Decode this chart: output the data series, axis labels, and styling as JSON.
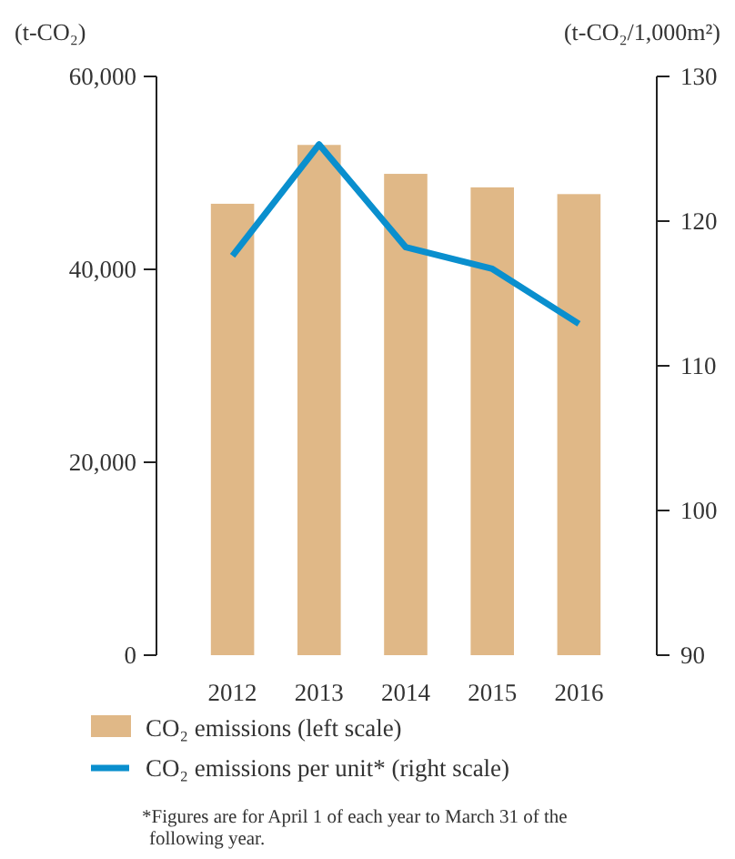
{
  "chart_data": {
    "type": "bar",
    "ylabel": "(t-CO₂)",
    "y2label": "(t-CO₂/1,000m²)",
    "categories": [
      "2012",
      "2013",
      "2014",
      "2015",
      "2016"
    ],
    "series": [
      {
        "name": "CO₂ emissions (left scale)",
        "color": "#e0b887",
        "values": [
          46800,
          52900,
          49900,
          48500,
          47800
        ]
      },
      {
        "name": "CO₂ emissions per unit* (right scale)",
        "type": "line",
        "axis": "y2",
        "color": "#0a8fce",
        "values": [
          117.6,
          125.3,
          118.2,
          116.7,
          112.9
        ]
      }
    ],
    "ylim": [
      0,
      60000
    ],
    "yticks": [
      0,
      {
        "value": 20000,
        "label": "20,000"
      },
      {
        "value": 40000,
        "label": "40,000"
      },
      {
        "value": 60000,
        "label": "60,000"
      }
    ],
    "y2lim": [
      90,
      130
    ],
    "y2ticks": [
      90,
      100,
      110,
      120,
      130
    ],
    "grid": false,
    "legend": "bottom",
    "marker": "none",
    "line_style": "solid",
    "annotations": [
      "*Figures are for April 1 of each year to March 31 of the following year."
    ]
  }
}
